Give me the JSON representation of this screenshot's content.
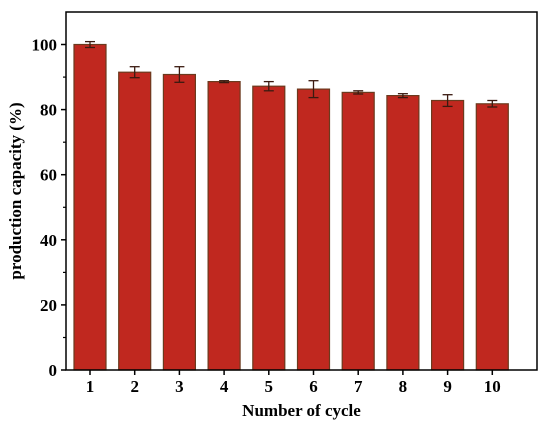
{
  "chart_data": {
    "type": "bar",
    "title": "",
    "xlabel": "Number of cycle",
    "ylabel": "production capacity (%)",
    "categories": [
      "1",
      "2",
      "3",
      "4",
      "5",
      "6",
      "7",
      "8",
      "9",
      "10"
    ],
    "values": [
      100.0,
      91.5,
      90.8,
      88.6,
      87.2,
      86.3,
      85.3,
      84.3,
      82.8,
      81.8
    ],
    "errors": [
      0.9,
      1.7,
      2.4,
      0.3,
      1.4,
      2.6,
      0.5,
      0.6,
      1.8,
      1.0
    ],
    "ylim": [
      0,
      110
    ],
    "yticks": [
      0,
      20,
      40,
      60,
      80,
      100
    ],
    "grid": false,
    "bar_color": "#c0281f",
    "bar_edge_color": "#6b3a1e"
  }
}
